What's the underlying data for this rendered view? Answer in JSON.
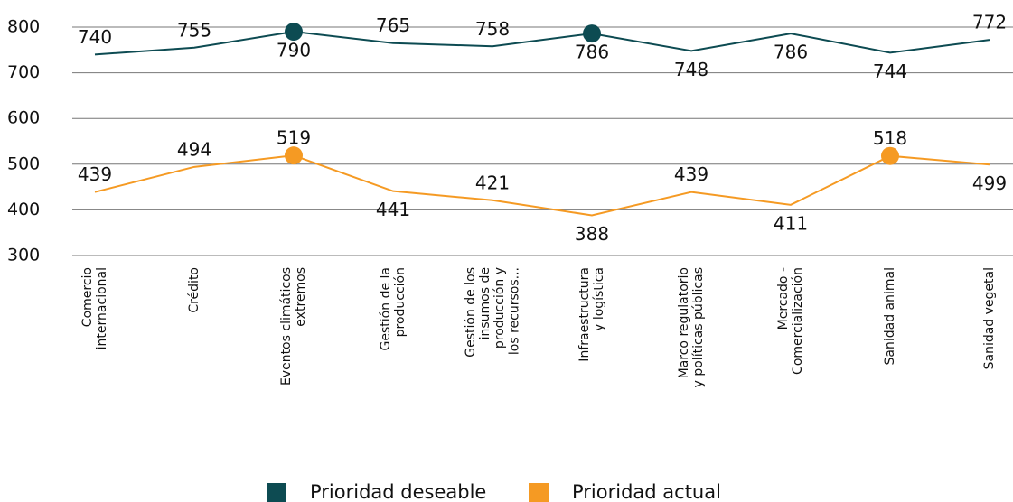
{
  "chart_data": {
    "type": "line",
    "categories": [
      [
        "Comercio",
        "internacional"
      ],
      [
        "Crédito"
      ],
      [
        "Eventos climáticos",
        "extremos"
      ],
      [
        "Gestión de la",
        "producción"
      ],
      [
        "Gestión de los",
        "insumos de",
        "producción y",
        "los recursos..."
      ],
      [
        "Infraestructura",
        "y logística"
      ],
      [
        "Marco regulatorio",
        "y políticas públicas"
      ],
      [
        "Mercado -",
        "Comercialización"
      ],
      [
        "Sanidad animal"
      ],
      [
        "Sanidad vegetal"
      ]
    ],
    "series": [
      {
        "name": "Prioridad deseable",
        "color": "#0d4b52",
        "values": [
          740,
          755,
          790,
          765,
          758,
          786,
          748,
          786,
          744,
          772
        ],
        "markers": [
          2,
          5
        ]
      },
      {
        "name": "Prioridad actual",
        "color": "#f59a23",
        "values": [
          439,
          494,
          519,
          441,
          421,
          388,
          439,
          411,
          518,
          499
        ],
        "markers": [
          2,
          8
        ]
      }
    ],
    "ylim": [
      300,
      800
    ],
    "yticks": [
      300,
      400,
      500,
      600,
      700,
      800
    ],
    "grid": true,
    "legend": "bottom"
  }
}
